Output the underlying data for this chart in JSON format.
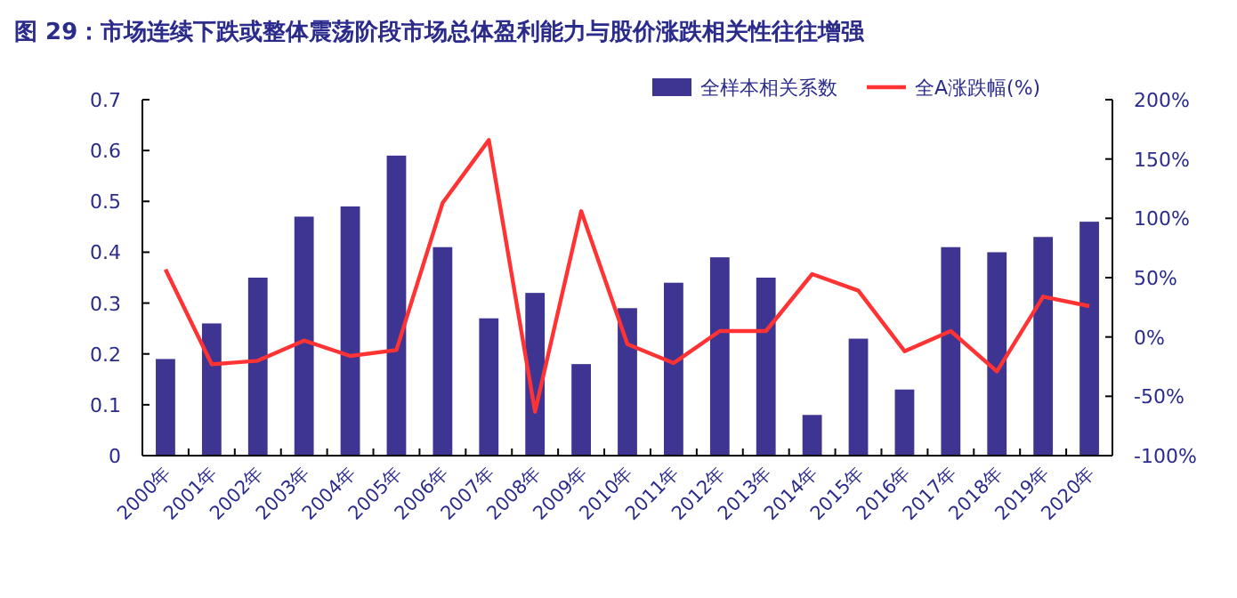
{
  "chart_data": {
    "type": "bar",
    "title": "图 29：市场连续下跌或整体震荡阶段市场总体盈利能力与股价涨跌相关性往往增强",
    "categories": [
      "2000年",
      "2001年",
      "2002年",
      "2003年",
      "2004年",
      "2005年",
      "2006年",
      "2007年",
      "2008年",
      "2009年",
      "2010年",
      "2011年",
      "2012年",
      "2013年",
      "2014年",
      "2015年",
      "2016年",
      "2017年",
      "2018年",
      "2019年",
      "2020年"
    ],
    "series": [
      {
        "name": "全样本相关系数",
        "color": "#3d3591",
        "values": [
          0.19,
          0.26,
          0.35,
          0.47,
          0.49,
          0.59,
          0.41,
          0.27,
          0.32,
          0.18,
          0.29,
          0.34,
          0.39,
          0.35,
          0.08,
          0.23,
          0.13,
          0.41,
          0.4,
          0.43,
          0.46
        ]
      },
      {
        "name": "全A涨跌幅(%)",
        "type": "line",
        "axis": "y2",
        "color": "#ff3333",
        "values": [
          57,
          -23,
          -20,
          -3,
          -16,
          -11,
          113,
          166,
          -63,
          106,
          -6,
          -22,
          5,
          5,
          53,
          39,
          -12,
          5,
          -29,
          34,
          26
        ]
      }
    ],
    "ylim": [
      0,
      0.7
    ],
    "yticks": [
      0,
      0.1,
      0.2,
      0.3,
      0.4,
      0.5,
      0.6,
      0.7
    ],
    "y2lim": [
      -100,
      200
    ],
    "y2ticks": [
      {
        "value": -100,
        "label": "-100%"
      },
      {
        "value": -50,
        "label": "-50%"
      },
      {
        "value": 0,
        "label": "0%"
      },
      {
        "value": 50,
        "label": "50%"
      },
      {
        "value": 100,
        "label": "100%"
      },
      {
        "value": 150,
        "label": "150%"
      },
      {
        "value": 200,
        "label": "200%"
      }
    ],
    "legend": "top right"
  }
}
